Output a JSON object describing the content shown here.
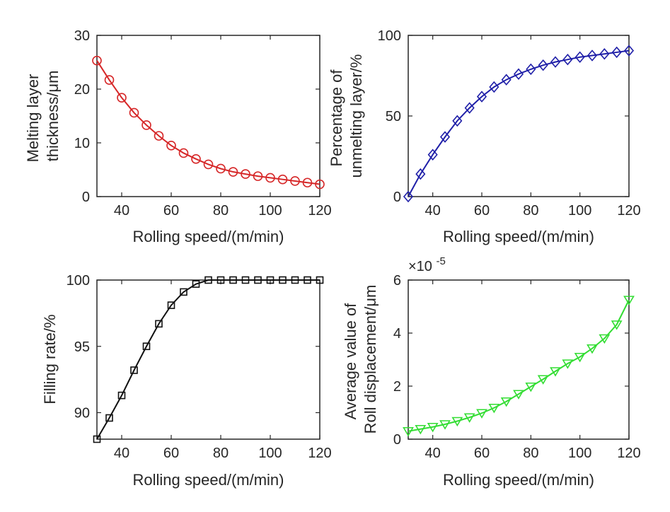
{
  "figure": {
    "background": "#ffffff"
  },
  "chart_data": [
    {
      "id": "melting",
      "type": "line",
      "xlabel": "Rolling speed/(m/min)",
      "ylabel": [
        "Melting layer",
        "thickness/μm"
      ],
      "xlim": [
        30,
        120
      ],
      "ylim": [
        0,
        30
      ],
      "xticks": [
        "40",
        "60",
        "80",
        "100",
        "120"
      ],
      "yticks": [
        "0",
        "10",
        "20",
        "30"
      ],
      "grid": false,
      "marker": "circle",
      "color": "#d62728",
      "x": [
        30,
        35,
        40,
        45,
        50,
        55,
        60,
        65,
        70,
        75,
        80,
        85,
        90,
        95,
        100,
        105,
        110,
        115,
        120
      ],
      "y": [
        25.3,
        21.7,
        18.4,
        15.6,
        13.3,
        11.3,
        9.5,
        8.1,
        7.0,
        6.0,
        5.2,
        4.6,
        4.2,
        3.8,
        3.5,
        3.2,
        2.9,
        2.6,
        2.3
      ]
    },
    {
      "id": "unmelting",
      "type": "line",
      "xlabel": "Rolling speed/(m/min)",
      "ylabel": [
        "Percentage of",
        "unmelting layer/%"
      ],
      "xlim": [
        30,
        120
      ],
      "ylim": [
        0,
        100
      ],
      "xticks": [
        "40",
        "60",
        "80",
        "100",
        "120"
      ],
      "yticks": [
        "0",
        "50",
        "100"
      ],
      "grid": false,
      "marker": "diamond",
      "color": "#1f1fa8",
      "x": [
        30,
        35,
        40,
        45,
        50,
        55,
        60,
        65,
        70,
        75,
        80,
        85,
        90,
        95,
        100,
        105,
        110,
        115,
        120
      ],
      "y": [
        0,
        14,
        26,
        37,
        47,
        55,
        62,
        68,
        72.5,
        76,
        79,
        81.5,
        83.5,
        85,
        86.5,
        87.5,
        88.5,
        89.5,
        90.5
      ]
    },
    {
      "id": "filling",
      "type": "line",
      "xlabel": "Rolling speed/(m/min)",
      "ylabel": [
        "Filling rate/%"
      ],
      "xlim": [
        30,
        120
      ],
      "ylim": [
        88,
        100
      ],
      "xticks": [
        "40",
        "60",
        "80",
        "100",
        "120"
      ],
      "yticks": [
        "90",
        "95",
        "100"
      ],
      "grid": false,
      "marker": "square",
      "color": "#111111",
      "x": [
        30,
        35,
        40,
        45,
        50,
        55,
        60,
        65,
        70,
        75,
        80,
        85,
        90,
        95,
        100,
        105,
        110,
        115,
        120
      ],
      "y": [
        88.0,
        89.6,
        91.3,
        93.2,
        95.0,
        96.7,
        98.1,
        99.1,
        99.7,
        100,
        100,
        100,
        100,
        100,
        100,
        100,
        100,
        100,
        100
      ]
    },
    {
      "id": "displacement",
      "type": "line",
      "xlabel": "Rolling speed/(m/min)",
      "ylabel": [
        "Average value of",
        "Roll displacement/μm"
      ],
      "xlim": [
        30,
        120
      ],
      "ylim": [
        0,
        6
      ],
      "xticks": [
        "40",
        "60",
        "80",
        "100",
        "120"
      ],
      "yticks": [
        "0",
        "2",
        "4",
        "6"
      ],
      "exponent_label": "×10",
      "exponent_power": "-5",
      "grid": false,
      "marker": "triangle-down",
      "color": "#33dd33",
      "x": [
        30,
        35,
        40,
        45,
        50,
        55,
        60,
        65,
        70,
        75,
        80,
        85,
        90,
        95,
        100,
        105,
        110,
        115,
        120
      ],
      "y": [
        0.3,
        0.38,
        0.46,
        0.56,
        0.68,
        0.82,
        0.98,
        1.18,
        1.42,
        1.7,
        1.98,
        2.26,
        2.56,
        2.85,
        3.1,
        3.42,
        3.8,
        4.32,
        5.25
      ]
    }
  ]
}
